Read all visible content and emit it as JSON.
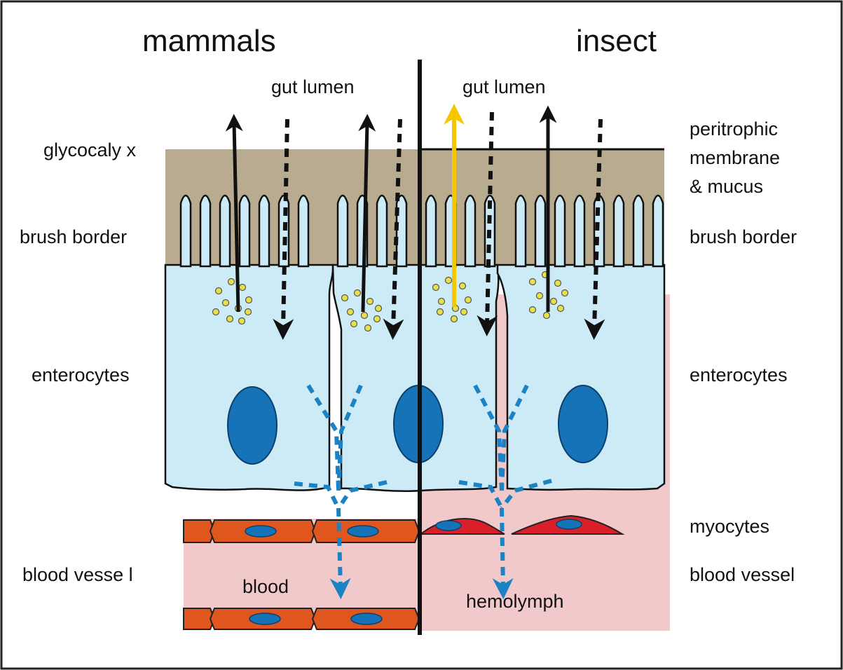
{
  "headings": {
    "left": "mammals",
    "right": "insect"
  },
  "labels": {
    "gut_lumen_left": "gut lumen",
    "gut_lumen_right": "gut lumen",
    "glycocalyx": "glycocaly x",
    "peritrophic_1": "peritrophic",
    "peritrophic_2": "membrane",
    "peritrophic_3": "& mucus",
    "brush_border_left": "brush border",
    "brush_border_right": "brush border",
    "enterocytes_left": "enterocytes",
    "enterocytes_right": "enterocytes",
    "myocytes": "myocytes",
    "blood_vessel_left": "blood vesse l",
    "blood_vessel_right": "blood vessel",
    "blood": "blood",
    "hemolymph": "hemolymph"
  },
  "colors": {
    "mucus": "#b9ab8f",
    "cell": "#cdeaf7",
    "nucleus": "#1673b8",
    "blood": "#f2c9cb",
    "endothelium": "#e0561f",
    "myocyte": "#d81f2a",
    "vesicle": "#e6e04a",
    "transport_arrow": "#111111",
    "highlight_arrow": "#f4c700",
    "dashed_arrow": "#1b82c3"
  }
}
